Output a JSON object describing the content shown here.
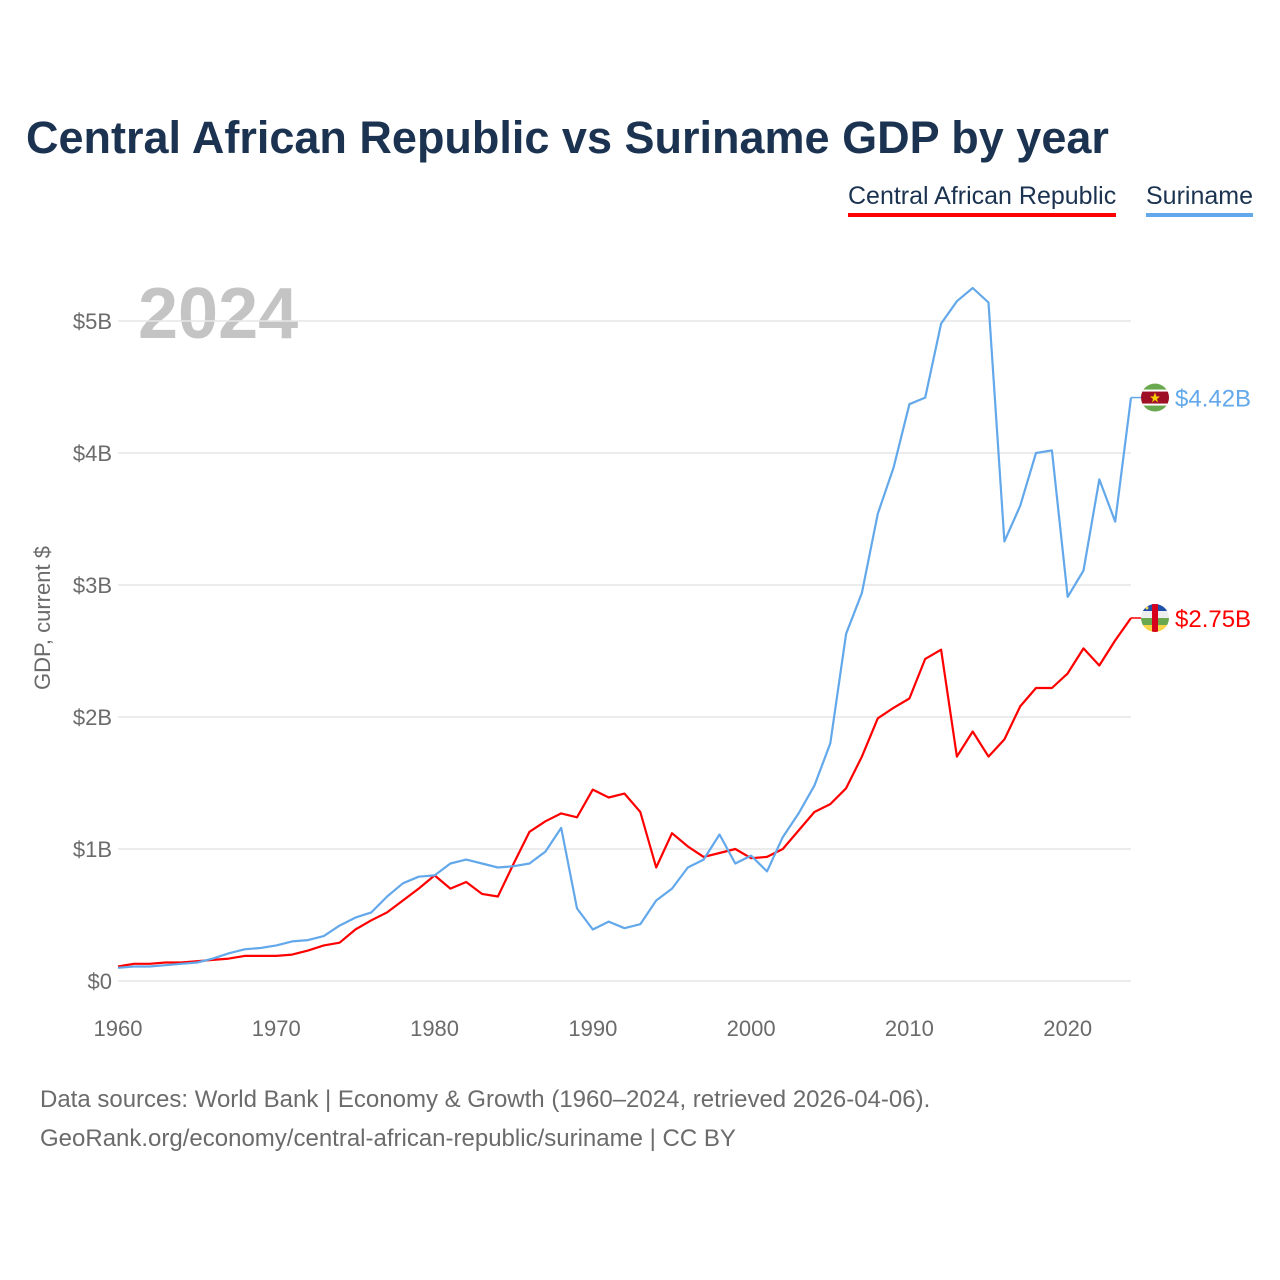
{
  "chart_data": {
    "type": "line",
    "title": "Central African Republic vs Suriname GDP by year",
    "ylabel": "GDP, current $",
    "xlabel": "",
    "year_watermark": "2024",
    "xlim": [
      1960,
      2024
    ],
    "ylim": [
      0,
      5
    ],
    "x_ticks": [
      1960,
      1970,
      1980,
      1990,
      2000,
      2010,
      2020
    ],
    "y_ticks": [
      {
        "v": 0,
        "label": "$0"
      },
      {
        "v": 1,
        "label": "$1B"
      },
      {
        "v": 2,
        "label": "$2B"
      },
      {
        "v": 3,
        "label": "$3B"
      },
      {
        "v": 4,
        "label": "$4B"
      },
      {
        "v": 5,
        "label": "$5B"
      }
    ],
    "grid": true,
    "legend_position": "top-right",
    "x_start": 1960,
    "series": [
      {
        "name": "Central African Republic",
        "color": "#ff0000",
        "end_label": "$2.75B",
        "flag": "central-african-republic",
        "values": [
          0.11,
          0.13,
          0.13,
          0.14,
          0.14,
          0.15,
          0.16,
          0.17,
          0.19,
          0.19,
          0.19,
          0.2,
          0.23,
          0.27,
          0.29,
          0.39,
          0.46,
          0.52,
          0.61,
          0.7,
          0.8,
          0.7,
          0.75,
          0.66,
          0.64,
          0.89,
          1.13,
          1.21,
          1.27,
          1.24,
          1.45,
          1.39,
          1.42,
          1.28,
          0.86,
          1.12,
          1.02,
          0.94,
          0.97,
          1.0,
          0.93,
          0.94,
          1.0,
          1.14,
          1.28,
          1.34,
          1.46,
          1.7,
          1.99,
          2.07,
          2.14,
          2.44,
          2.51,
          1.7,
          1.89,
          1.7,
          1.83,
          2.08,
          2.22,
          2.22,
          2.33,
          2.52,
          2.39,
          2.58,
          2.75
        ]
      },
      {
        "name": "Suriname",
        "color": "#62a8ea",
        "end_label": "$4.42B",
        "flag": "suriname",
        "values": [
          0.1,
          0.11,
          0.11,
          0.12,
          0.13,
          0.14,
          0.17,
          0.21,
          0.24,
          0.25,
          0.27,
          0.3,
          0.31,
          0.34,
          0.42,
          0.48,
          0.52,
          0.64,
          0.74,
          0.79,
          0.8,
          0.89,
          0.92,
          0.89,
          0.86,
          0.87,
          0.89,
          0.98,
          1.16,
          0.55,
          0.39,
          0.45,
          0.4,
          0.43,
          0.61,
          0.7,
          0.86,
          0.92,
          1.11,
          0.89,
          0.95,
          0.83,
          1.09,
          1.27,
          1.48,
          1.8,
          2.63,
          2.94,
          3.54,
          3.89,
          4.37,
          4.42,
          4.98,
          5.15,
          5.25,
          5.14,
          3.33,
          3.6,
          4.0,
          4.02,
          2.91,
          3.11,
          3.8,
          3.48,
          4.42
        ]
      }
    ]
  },
  "footer": {
    "line1": "Data sources: World Bank | Economy & Growth (1960–2024, retrieved 2026-04-06).",
    "line2": "GeoRank.org/economy/central-african-republic/suriname | CC BY"
  }
}
